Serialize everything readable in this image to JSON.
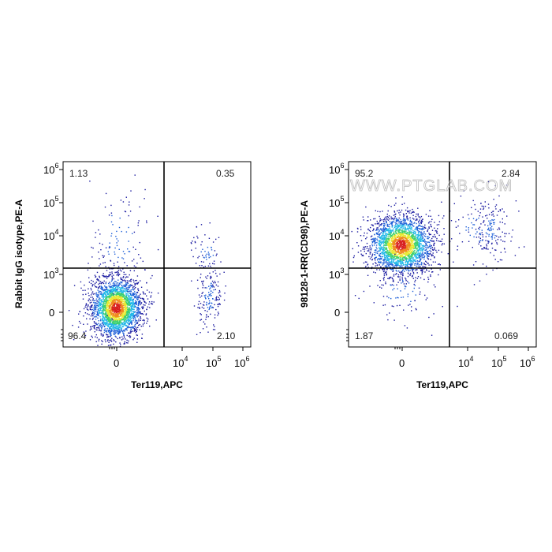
{
  "watermark": "WWW.PTGLAB.COM",
  "colors": {
    "density_scale": [
      "#1a1aa0",
      "#1e5fd8",
      "#22b8e8",
      "#3cd070",
      "#e8e830",
      "#f08a20",
      "#d82020"
    ],
    "gate_line": "#000000"
  },
  "chart_data": [
    {
      "type": "scatter",
      "subtype": "flow-cytometry-density-dot-plot",
      "xlabel": "Ter119,APC",
      "ylabel": "Rabbit IgG isotype,PE-A",
      "x_scale": "biexponential",
      "y_scale": "biexponential",
      "x_ticks": [
        "0",
        "10^4",
        "10^5",
        "10^6"
      ],
      "y_ticks": [
        "0",
        "10^3",
        "10^4",
        "10^5",
        "10^6"
      ],
      "gate": {
        "x": 3500,
        "y": 1600
      },
      "quadrants": {
        "upper_left": "1.13",
        "upper_right": "0.35",
        "lower_left": "96.4",
        "lower_right": "2.10"
      },
      "populations": [
        {
          "x_center": 0,
          "y_center": 0,
          "share": "major"
        },
        {
          "x_center": 50000,
          "y_center": 300,
          "share": "minor"
        }
      ]
    },
    {
      "type": "scatter",
      "subtype": "flow-cytometry-density-dot-plot",
      "xlabel": "Ter119,APC",
      "ylabel": "98128-1-RR(CD98),PE-A",
      "x_scale": "biexponential",
      "y_scale": "biexponential",
      "x_ticks": [
        "0",
        "10^4",
        "10^5",
        "10^6"
      ],
      "y_ticks": [
        "0",
        "10^3",
        "10^4",
        "10^5",
        "10^6"
      ],
      "gate": {
        "x": 3500,
        "y": 1600
      },
      "quadrants": {
        "upper_left": "95.2",
        "upper_right": "2.84",
        "lower_left": "1.87",
        "lower_right": "0.069"
      },
      "populations": [
        {
          "x_center": 0,
          "y_center": 7000,
          "share": "major"
        },
        {
          "x_center": 50000,
          "y_center": 20000,
          "share": "minor"
        }
      ]
    }
  ]
}
